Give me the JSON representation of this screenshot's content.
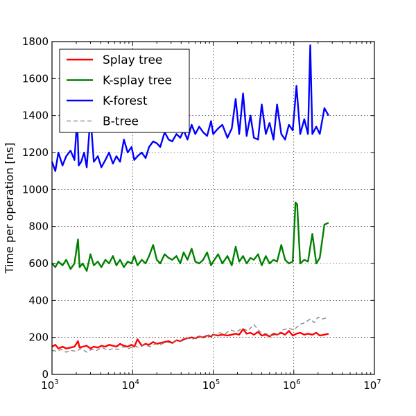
{
  "chart_data": {
    "type": "line",
    "x_scale": "log",
    "xlim": [
      1000,
      10000000
    ],
    "ylim": [
      0,
      1800
    ],
    "xlabel": "",
    "ylabel": "Time per operation [ns]",
    "title": "",
    "grid": true,
    "legend_position": "top-left",
    "x_ticks": [
      {
        "base": "10",
        "exp": "3",
        "value": 1000
      },
      {
        "base": "10",
        "exp": "4",
        "value": 10000
      },
      {
        "base": "10",
        "exp": "5",
        "value": 100000
      },
      {
        "base": "10",
        "exp": "6",
        "value": 1000000
      },
      {
        "base": "10",
        "exp": "7",
        "value": 10000000
      }
    ],
    "y_ticks": [
      {
        "label": "0",
        "value": 0
      },
      {
        "label": "200",
        "value": 200
      },
      {
        "label": "400",
        "value": 400
      },
      {
        "label": "600",
        "value": 600
      },
      {
        "label": "800",
        "value": 800
      },
      {
        "label": "1000",
        "value": 1000
      },
      {
        "label": "1200",
        "value": 1200
      },
      {
        "label": "1400",
        "value": 1400
      },
      {
        "label": "1600",
        "value": 1600
      },
      {
        "label": "1800",
        "value": 1800
      }
    ],
    "series": [
      {
        "name": "Splay tree",
        "color": "#ff0000",
        "style": "solid",
        "x": [
          1000,
          1100,
          1200,
          1350,
          1500,
          1700,
          1900,
          2100,
          2200,
          2400,
          2700,
          3000,
          3300,
          3700,
          4100,
          4600,
          5100,
          5700,
          6300,
          7000,
          7800,
          8700,
          9700,
          10500,
          11500,
          13000,
          14500,
          16000,
          18000,
          20000,
          22000,
          25000,
          28000,
          31000,
          35000,
          39000,
          43000,
          48000,
          54000,
          60000,
          67000,
          75000,
          84000,
          94000,
          100000,
          115000,
          130000,
          150000,
          170000,
          190000,
          210000,
          235000,
          260000,
          290000,
          320000,
          360000,
          400000,
          450000,
          500000,
          560000,
          620000,
          700000,
          780000,
          870000,
          970000,
          1080000,
          1200000,
          1350000,
          1500000,
          1700000,
          1900000,
          2100000,
          2400000,
          2700000
        ],
        "y": [
          150,
          160,
          140,
          150,
          140,
          145,
          150,
          180,
          145,
          150,
          155,
          140,
          150,
          145,
          155,
          150,
          160,
          155,
          150,
          165,
          155,
          150,
          160,
          150,
          190,
          155,
          165,
          160,
          175,
          165,
          170,
          175,
          180,
          170,
          185,
          180,
          190,
          195,
          200,
          195,
          205,
          200,
          210,
          205,
          215,
          210,
          215,
          210,
          215,
          220,
          215,
          245,
          220,
          225,
          215,
          230,
          210,
          215,
          205,
          220,
          215,
          225,
          215,
          235,
          210,
          220,
          225,
          215,
          220,
          215,
          225,
          210,
          215,
          220
        ]
      },
      {
        "name": "K-splay tree",
        "color": "#008000",
        "style": "solid",
        "x": [
          1000,
          1100,
          1200,
          1350,
          1500,
          1700,
          1900,
          2100,
          2200,
          2400,
          2700,
          3000,
          3300,
          3700,
          4100,
          4600,
          5100,
          5700,
          6300,
          7000,
          7800,
          8700,
          9700,
          10500,
          11500,
          13000,
          14500,
          16000,
          18000,
          20000,
          22000,
          25000,
          28000,
          31000,
          35000,
          39000,
          43000,
          48000,
          54000,
          60000,
          67000,
          75000,
          84000,
          94000,
          100000,
          115000,
          130000,
          150000,
          170000,
          190000,
          210000,
          235000,
          260000,
          290000,
          320000,
          360000,
          400000,
          450000,
          500000,
          560000,
          620000,
          700000,
          780000,
          870000,
          970000,
          1050000,
          1100000,
          1200000,
          1350000,
          1500000,
          1700000,
          1900000,
          2100000,
          2400000,
          2700000
        ],
        "y": [
          600,
          580,
          610,
          590,
          620,
          570,
          600,
          730,
          580,
          600,
          560,
          650,
          590,
          610,
          580,
          620,
          600,
          640,
          590,
          620,
          580,
          610,
          600,
          640,
          590,
          620,
          600,
          640,
          700,
          620,
          600,
          650,
          630,
          620,
          640,
          600,
          660,
          620,
          680,
          610,
          600,
          620,
          660,
          590,
          610,
          650,
          600,
          640,
          590,
          690,
          610,
          640,
          600,
          630,
          620,
          650,
          590,
          640,
          600,
          620,
          610,
          700,
          620,
          600,
          610,
          930,
          920,
          600,
          620,
          610,
          760,
          600,
          630,
          810,
          820
        ]
      },
      {
        "name": "K-forest",
        "color": "#0000ff",
        "style": "solid",
        "x": [
          1000,
          1100,
          1200,
          1350,
          1500,
          1700,
          1900,
          2050,
          2150,
          2300,
          2500,
          2700,
          3000,
          3300,
          3700,
          4100,
          4600,
          5100,
          5700,
          6300,
          7000,
          7800,
          8700,
          9700,
          10500,
          11500,
          13000,
          14500,
          16000,
          18000,
          20000,
          22000,
          25000,
          28000,
          31000,
          35000,
          39000,
          43000,
          48000,
          54000,
          60000,
          67000,
          75000,
          84000,
          94000,
          100000,
          115000,
          130000,
          150000,
          170000,
          190000,
          210000,
          235000,
          260000,
          290000,
          320000,
          360000,
          400000,
          450000,
          500000,
          560000,
          620000,
          700000,
          780000,
          870000,
          970000,
          1080000,
          1200000,
          1350000,
          1500000,
          1600000,
          1700000,
          1900000,
          2100000,
          2400000,
          2700000
        ],
        "y": [
          1150,
          1100,
          1200,
          1130,
          1180,
          1210,
          1160,
          1380,
          1130,
          1150,
          1200,
          1120,
          1400,
          1150,
          1180,
          1120,
          1160,
          1200,
          1140,
          1180,
          1150,
          1270,
          1200,
          1230,
          1160,
          1180,
          1200,
          1170,
          1230,
          1260,
          1250,
          1230,
          1310,
          1270,
          1260,
          1300,
          1280,
          1320,
          1270,
          1350,
          1300,
          1340,
          1310,
          1290,
          1370,
          1300,
          1330,
          1350,
          1280,
          1330,
          1490,
          1300,
          1520,
          1290,
          1400,
          1280,
          1270,
          1460,
          1300,
          1360,
          1270,
          1460,
          1300,
          1270,
          1350,
          1320,
          1560,
          1300,
          1380,
          1300,
          1780,
          1300,
          1340,
          1300,
          1440,
          1400
        ]
      },
      {
        "name": "B-tree",
        "color": "#808080",
        "style": "dashed",
        "x": [
          1000,
          1150,
          1300,
          1500,
          1700,
          2000,
          2300,
          2700,
          3100,
          3600,
          4200,
          4900,
          5700,
          6600,
          7700,
          9000,
          10500,
          12000,
          14000,
          16500,
          19000,
          22000,
          26000,
          30000,
          35000,
          41000,
          48000,
          56000,
          65000,
          76000,
          89000,
          100000,
          120000,
          140000,
          165000,
          195000,
          230000,
          270000,
          320000,
          380000,
          450000,
          530000,
          620000,
          730000,
          860000,
          1000000,
          1180000,
          1380000,
          1600000,
          1800000,
          2000000,
          2300000,
          2700000
        ],
        "y": [
          130,
          125,
          135,
          120,
          130,
          125,
          140,
          120,
          135,
          130,
          145,
          130,
          140,
          135,
          150,
          140,
          155,
          145,
          160,
          150,
          165,
          160,
          175,
          170,
          185,
          180,
          195,
          190,
          205,
          200,
          215,
          210,
          225,
          220,
          240,
          230,
          250,
          235,
          270,
          230,
          220,
          210,
          215,
          240,
          250,
          240,
          270,
          280,
          300,
          280,
          310,
          300,
          310
        ]
      }
    ]
  }
}
